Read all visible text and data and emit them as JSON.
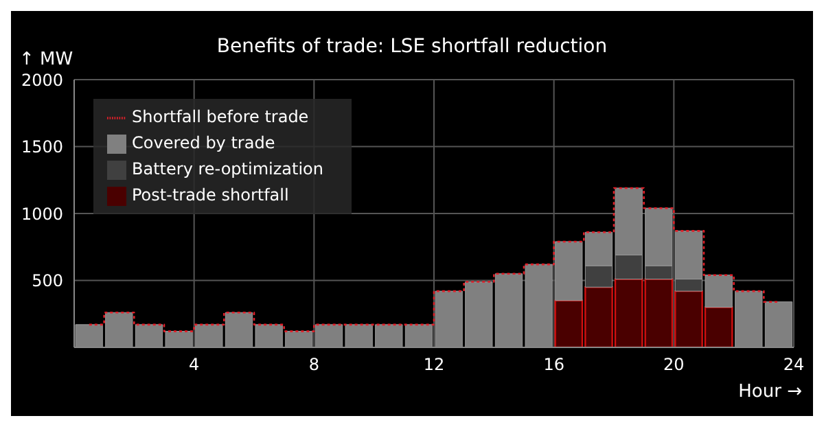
{
  "chart_data": {
    "type": "bar",
    "title": "Benefits of trade: LSE shortfall reduction",
    "xlabel": "Hour →",
    "ylabel": "↑ MW",
    "x": [
      0.5,
      1.5,
      2.5,
      3.5,
      4.5,
      5.5,
      6.5,
      7.5,
      8.5,
      9.5,
      10.5,
      11.5,
      12.5,
      13.5,
      14.5,
      15.5,
      16.5,
      17.5,
      18.5,
      19.5,
      20.5,
      21.5,
      22.5,
      23.5
    ],
    "stacked": true,
    "series": [
      {
        "name": "Shortfall before trade",
        "type": "step",
        "color": "#e0202a",
        "line_style": "dotted",
        "values": [
          170,
          260,
          170,
          120,
          170,
          260,
          170,
          120,
          170,
          170,
          170,
          170,
          420,
          490,
          550,
          620,
          790,
          860,
          1190,
          1040,
          870,
          540,
          420,
          340
        ]
      },
      {
        "name": "Post-trade shortfall",
        "color": "#4a0000",
        "values": [
          0,
          0,
          0,
          0,
          0,
          0,
          0,
          0,
          0,
          0,
          0,
          0,
          0,
          0,
          0,
          0,
          350,
          450,
          510,
          510,
          420,
          300,
          0,
          0
        ]
      },
      {
        "name": "Battery re-optimization",
        "color": "#404040",
        "values": [
          0,
          0,
          0,
          0,
          0,
          0,
          0,
          0,
          0,
          0,
          0,
          0,
          0,
          0,
          0,
          0,
          0,
          160,
          180,
          100,
          90,
          0,
          0,
          0
        ]
      },
      {
        "name": "Covered by trade",
        "color": "#808080",
        "values": [
          170,
          260,
          170,
          120,
          170,
          260,
          170,
          120,
          170,
          170,
          170,
          170,
          420,
          490,
          550,
          620,
          440,
          250,
          500,
          430,
          360,
          240,
          420,
          340
        ]
      }
    ],
    "xlim": [
      0,
      24
    ],
    "xticks": [
      4,
      8,
      12,
      16,
      20,
      24
    ],
    "ylim": [
      0,
      2000
    ],
    "yticks": [
      500,
      1000,
      1500,
      2000
    ],
    "grid": true,
    "legend": "top left"
  }
}
